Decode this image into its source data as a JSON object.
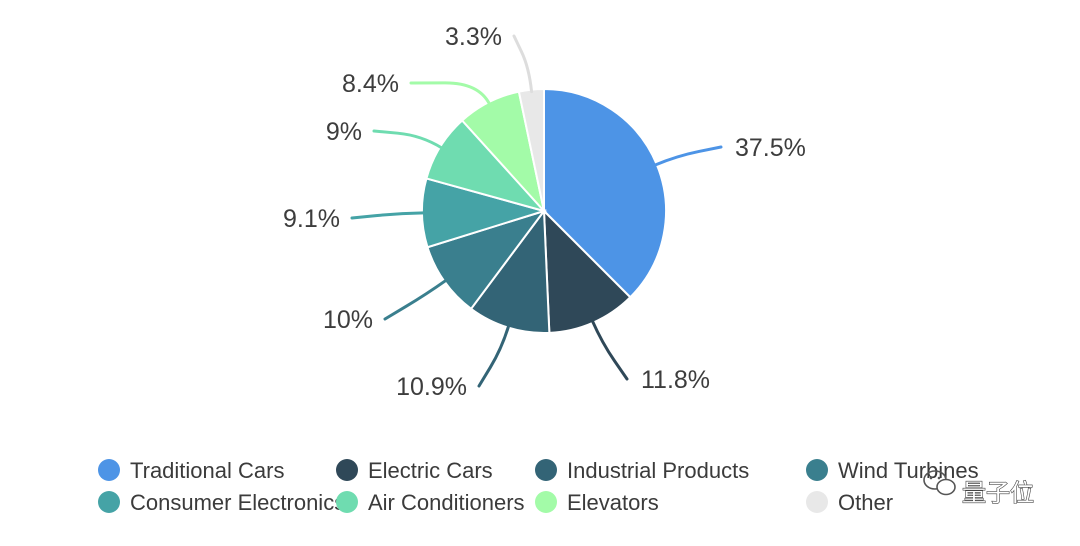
{
  "chart_data": {
    "type": "pie",
    "title": "",
    "slices": [
      {
        "label": "Traditional Cars",
        "value": 37.5,
        "display": "37.5%",
        "color": "#4d94e6"
      },
      {
        "label": "Electric Cars",
        "value": 11.8,
        "display": "11.8%",
        "color": "#2f4858"
      },
      {
        "label": "Industrial Products",
        "value": 10.9,
        "display": "10.9%",
        "color": "#336476"
      },
      {
        "label": "Wind Turbines",
        "value": 10,
        "display": "10%",
        "color": "#3a7f8e"
      },
      {
        "label": "Consumer Electronics",
        "value": 9.1,
        "display": "9.1%",
        "color": "#45a3a6"
      },
      {
        "label": "Air Conditioners",
        "value": 9,
        "display": "9%",
        "color": "#6fdcb0"
      },
      {
        "label": "Elevators",
        "value": 8.4,
        "display": "8.4%",
        "color": "#a3fba8"
      },
      {
        "label": "Other",
        "value": 3.3,
        "display": "3.3%",
        "color": "#e8e8e8"
      }
    ],
    "legend_position": "bottom"
  },
  "watermark": {
    "text": "量子位",
    "icon": "wechat-icon"
  }
}
